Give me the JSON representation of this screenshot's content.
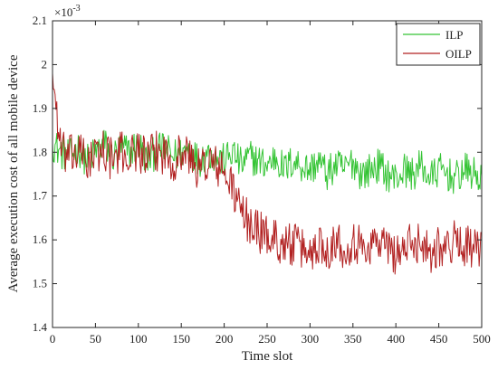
{
  "chart_data": {
    "type": "line",
    "xlabel": "Time slot",
    "ylabel": "Average execution cost of all mobile device",
    "exponent_label": "×10",
    "exponent_power": "-3",
    "xlim": [
      0,
      500
    ],
    "ylim": [
      1.4,
      2.1
    ],
    "x_ticks": [
      0,
      50,
      100,
      150,
      200,
      250,
      300,
      350,
      400,
      450,
      500
    ],
    "y_ticks": [
      1.4,
      1.5,
      1.6,
      1.7,
      1.8,
      1.9,
      2.0,
      2.1
    ],
    "y_tick_labels": [
      "1.4",
      "1.5",
      "1.6",
      "1.7",
      "1.8",
      "1.9",
      "2",
      "2.1"
    ],
    "legend_position": "top-right",
    "grid": false,
    "series": [
      {
        "name": "ILP",
        "color": "#35c435",
        "x": [
          0,
          10,
          20,
          30,
          40,
          50,
          60,
          70,
          80,
          90,
          100,
          110,
          120,
          130,
          140,
          150,
          160,
          170,
          180,
          190,
          200,
          210,
          220,
          230,
          240,
          250,
          260,
          270,
          280,
          290,
          300,
          310,
          320,
          330,
          340,
          350,
          360,
          370,
          380,
          390,
          400,
          410,
          420,
          430,
          440,
          450,
          460,
          470,
          480,
          490,
          500
        ],
        "values": [
          1.82,
          1.8,
          1.79,
          1.81,
          1.78,
          1.8,
          1.82,
          1.79,
          1.81,
          1.8,
          1.82,
          1.78,
          1.8,
          1.81,
          1.79,
          1.8,
          1.81,
          1.78,
          1.8,
          1.79,
          1.78,
          1.8,
          1.77,
          1.79,
          1.78,
          1.77,
          1.79,
          1.76,
          1.78,
          1.77,
          1.76,
          1.78,
          1.75,
          1.77,
          1.76,
          1.78,
          1.75,
          1.76,
          1.77,
          1.75,
          1.74,
          1.76,
          1.75,
          1.77,
          1.74,
          1.76,
          1.75,
          1.74,
          1.76,
          1.75,
          1.74
        ],
        "noise": 0.04
      },
      {
        "name": "OILP",
        "color": "#b22222",
        "x": [
          0,
          10,
          20,
          30,
          40,
          50,
          60,
          70,
          80,
          90,
          100,
          110,
          120,
          130,
          140,
          150,
          160,
          170,
          180,
          190,
          200,
          210,
          220,
          230,
          240,
          250,
          260,
          270,
          280,
          290,
          300,
          310,
          320,
          330,
          340,
          350,
          360,
          370,
          380,
          390,
          400,
          410,
          420,
          430,
          440,
          450,
          460,
          470,
          480,
          490,
          500
        ],
        "values": [
          1.98,
          1.8,
          1.79,
          1.8,
          1.78,
          1.79,
          1.81,
          1.78,
          1.8,
          1.79,
          1.81,
          1.78,
          1.8,
          1.8,
          1.78,
          1.8,
          1.79,
          1.76,
          1.78,
          1.77,
          1.75,
          1.72,
          1.66,
          1.64,
          1.62,
          1.61,
          1.6,
          1.59,
          1.59,
          1.58,
          1.57,
          1.59,
          1.58,
          1.6,
          1.58,
          1.6,
          1.58,
          1.59,
          1.6,
          1.58,
          1.57,
          1.58,
          1.59,
          1.6,
          1.57,
          1.59,
          1.58,
          1.6,
          1.59,
          1.58,
          1.57
        ],
        "noise": 0.05
      }
    ]
  }
}
